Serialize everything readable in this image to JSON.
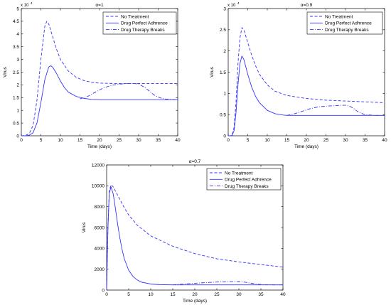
{
  "chart_data": [
    {
      "type": "line",
      "title": "α=1",
      "xlabel": "Time (days)",
      "ylabel": "Virus",
      "xlim": [
        0,
        40
      ],
      "ylim": [
        0,
        5
      ],
      "xticks": [
        0,
        5,
        10,
        15,
        20,
        25,
        30,
        35,
        40
      ],
      "yticks": [
        0,
        0.5,
        1,
        1.5,
        2,
        2.5,
        3,
        3.5,
        4,
        4.5,
        5
      ],
      "ytick_labels": [
        "0",
        "0.5",
        "1",
        "1.5",
        "2",
        "2.5",
        "3",
        "3.5",
        "4",
        "4.5",
        "5"
      ],
      "multiplier_base": "x 10",
      "multiplier_exp": "4",
      "legend_position": "top-right",
      "series": [
        {
          "name": "No Treatment",
          "style": "dashed",
          "color": "#3333ff",
          "x": [
            0,
            1,
            2,
            3,
            4,
            5,
            6,
            6.5,
            7,
            8,
            9,
            10,
            12,
            14,
            16,
            18,
            20,
            25,
            30,
            35,
            40
          ],
          "y": [
            0,
            0.01,
            0.08,
            0.4,
            1.4,
            3.0,
            4.3,
            4.5,
            4.4,
            3.9,
            3.4,
            3.0,
            2.55,
            2.3,
            2.17,
            2.1,
            2.07,
            2.05,
            2.05,
            2.05,
            2.05
          ]
        },
        {
          "name": "Drug Perfect Adhrence",
          "style": "solid",
          "color": "#3333ff",
          "x": [
            0,
            1,
            2,
            3,
            4,
            5,
            6,
            7,
            7.5,
            8,
            9,
            10,
            11,
            12,
            14,
            16,
            18,
            20,
            25,
            30,
            35,
            40
          ],
          "y": [
            0,
            0.0,
            0.02,
            0.12,
            0.5,
            1.3,
            2.2,
            2.7,
            2.75,
            2.7,
            2.45,
            2.15,
            1.9,
            1.72,
            1.55,
            1.47,
            1.43,
            1.42,
            1.42,
            1.42,
            1.42,
            1.42
          ]
        },
        {
          "name": "Drug Therapy Breaks",
          "style": "dashdot",
          "color": "#3333ff",
          "x": [
            15,
            17,
            19,
            21,
            23,
            25,
            27,
            29,
            30,
            31,
            32,
            33,
            34,
            35,
            36,
            37,
            38,
            39,
            40
          ],
          "y": [
            1.45,
            1.55,
            1.72,
            1.88,
            1.98,
            2.03,
            2.05,
            2.05,
            2.03,
            1.95,
            1.85,
            1.72,
            1.6,
            1.52,
            1.47,
            1.44,
            1.43,
            1.42,
            1.42
          ]
        }
      ]
    },
    {
      "type": "line",
      "title": "α=0.9",
      "xlabel": "Time (days)",
      "ylabel": "Virus",
      "xlim": [
        0,
        40
      ],
      "ylim": [
        0,
        3
      ],
      "xticks": [
        0,
        5,
        10,
        15,
        20,
        25,
        30,
        35,
        40
      ],
      "yticks": [
        0,
        0.5,
        1,
        1.5,
        2,
        2.5,
        3
      ],
      "ytick_labels": [
        "0",
        "0.5",
        "1",
        "1.5",
        "2",
        "2.5",
        "3"
      ],
      "multiplier_base": "x 10",
      "multiplier_exp": "4",
      "legend_position": "top-right",
      "series": [
        {
          "name": "No Treatment",
          "style": "dashed",
          "color": "#3333ff",
          "x": [
            0,
            0.5,
            1,
            1.5,
            2,
            2.5,
            3,
            3.5,
            4,
            5,
            6,
            7,
            8,
            10,
            12,
            15,
            20,
            25,
            30,
            35,
            40
          ],
          "y": [
            0,
            0.0,
            0.02,
            0.2,
            0.8,
            1.7,
            2.3,
            2.55,
            2.5,
            2.2,
            1.9,
            1.65,
            1.45,
            1.2,
            1.05,
            0.95,
            0.88,
            0.84,
            0.82,
            0.8,
            0.78
          ]
        },
        {
          "name": "Drug Perfect Adhrence",
          "style": "solid",
          "color": "#3333ff",
          "x": [
            0,
            0.5,
            1,
            1.5,
            2,
            2.5,
            3,
            3.5,
            4,
            5,
            6,
            7,
            8,
            10,
            12,
            14,
            15,
            20,
            25,
            30,
            35,
            40
          ],
          "y": [
            0,
            0.0,
            0.01,
            0.12,
            0.55,
            1.2,
            1.7,
            1.88,
            1.8,
            1.45,
            1.15,
            0.93,
            0.78,
            0.6,
            0.52,
            0.49,
            0.48,
            0.48,
            0.48,
            0.48,
            0.48,
            0.48
          ]
        },
        {
          "name": "Drug Therapy Breaks",
          "style": "dashdot",
          "color": "#3333ff",
          "x": [
            15,
            17,
            19,
            21,
            23,
            25,
            27,
            29,
            30,
            31,
            32,
            33,
            34,
            35,
            36,
            38,
            40
          ],
          "y": [
            0.48,
            0.52,
            0.58,
            0.64,
            0.68,
            0.7,
            0.71,
            0.72,
            0.72,
            0.7,
            0.65,
            0.58,
            0.53,
            0.5,
            0.49,
            0.48,
            0.48
          ]
        }
      ]
    },
    {
      "type": "line",
      "title": "α=0.7",
      "xlabel": "Time (days)",
      "ylabel": "Virus",
      "xlim": [
        0,
        40
      ],
      "ylim": [
        0,
        12000
      ],
      "xticks": [
        0,
        5,
        10,
        15,
        20,
        25,
        30,
        35,
        40
      ],
      "yticks": [
        0,
        2000,
        4000,
        6000,
        8000,
        10000,
        12000
      ],
      "ytick_labels": [
        "0",
        "2000",
        "4000",
        "6000",
        "8000",
        "10000",
        "12000"
      ],
      "legend_position": "top-right",
      "series": [
        {
          "name": "No Treatment",
          "style": "dashed",
          "color": "#3333ff",
          "x": [
            0,
            0.3,
            0.6,
            1,
            1.5,
            2,
            3,
            4,
            5,
            7,
            10,
            15,
            20,
            25,
            30,
            35,
            40
          ],
          "y": [
            0,
            6000,
            9500,
            10100,
            9900,
            9500,
            8700,
            7900,
            7200,
            6200,
            5200,
            4200,
            3500,
            3000,
            2700,
            2450,
            2200
          ]
        },
        {
          "name": "Drug Perfect Adhrence",
          "style": "solid",
          "color": "#3333ff",
          "x": [
            0,
            0.3,
            0.6,
            1,
            1.5,
            2,
            2.5,
            3,
            3.5,
            4,
            5,
            6,
            7,
            8,
            10,
            12,
            15,
            20,
            25,
            30,
            35,
            40
          ],
          "y": [
            0,
            6000,
            9300,
            9900,
            9200,
            7800,
            6300,
            5000,
            3900,
            3000,
            1900,
            1300,
            950,
            750,
            580,
            520,
            500,
            500,
            500,
            500,
            500,
            500
          ]
        },
        {
          "name": "Drug Therapy Breaks",
          "style": "dashdot",
          "color": "#3333ff",
          "x": [
            15,
            17,
            19,
            21,
            23,
            25,
            27,
            29,
            30,
            31,
            32,
            33,
            34,
            35,
            36,
            38,
            40
          ],
          "y": [
            500,
            560,
            620,
            680,
            730,
            770,
            800,
            820,
            810,
            780,
            720,
            640,
            570,
            530,
            510,
            500,
            500
          ]
        }
      ]
    }
  ]
}
